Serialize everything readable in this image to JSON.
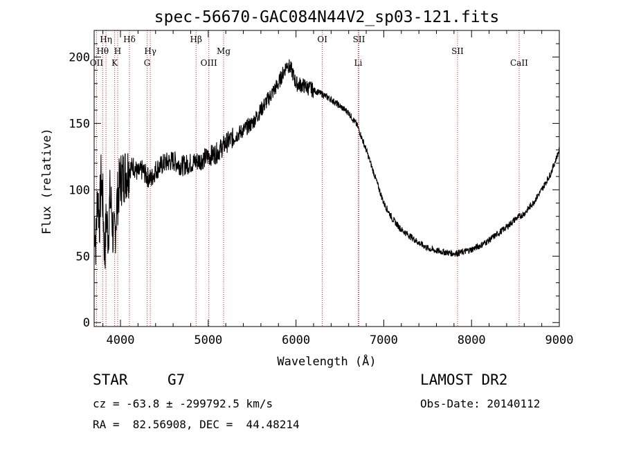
{
  "chart_data": {
    "type": "line",
    "title": "spec-56670-GAC084N44V2_sp03-121.fits",
    "xlabel": "Wavelength (Å)",
    "ylabel": "Flux (relative)",
    "xlim": [
      3700,
      9000
    ],
    "ylim": [
      -3,
      220
    ],
    "x_ticks": [
      4000,
      5000,
      6000,
      7000,
      8000,
      9000
    ],
    "y_ticks": [
      0,
      50,
      100,
      150,
      200
    ],
    "grid": false,
    "line_color": "#000000",
    "marker_color": "#cc2222",
    "line_markers": [
      {
        "label": "Hη",
        "wavelength": 3835,
        "row": 0
      },
      {
        "label": "Hθ",
        "wavelength": 3797,
        "row": 1
      },
      {
        "label": "OII",
        "wavelength": 3727,
        "row": 2
      },
      {
        "label": "H",
        "wavelength": 3968,
        "row": 1
      },
      {
        "label": "K",
        "wavelength": 3934,
        "row": 2
      },
      {
        "label": "Hδ",
        "wavelength": 4102,
        "row": 0
      },
      {
        "label": "Hγ",
        "wavelength": 4340,
        "row": 1
      },
      {
        "label": "G",
        "wavelength": 4304,
        "row": 2
      },
      {
        "label": "Hβ",
        "wavelength": 4861,
        "row": 0
      },
      {
        "label": "OIII",
        "wavelength": 5007,
        "row": 2
      },
      {
        "label": "Mg",
        "wavelength": 5175,
        "row": 1
      },
      {
        "label": "OI",
        "wavelength": 6300,
        "row": 0
      },
      {
        "label": "SII",
        "wavelength": 6717,
        "row": 0
      },
      {
        "label": "Li",
        "wavelength": 6708,
        "row": 2
      },
      {
        "label": "SII",
        "wavelength": 7840,
        "row": 1
      },
      {
        "label": "CaII",
        "wavelength": 8542,
        "row": 2
      }
    ],
    "series": [
      {
        "x": [
          3700,
          3720,
          3740,
          3760,
          3780,
          3800,
          3820,
          3840,
          3860,
          3880,
          3900,
          3920,
          3940,
          3960,
          3980,
          4000,
          4050,
          4100,
          4150,
          4200,
          4250,
          4300,
          4350,
          4400,
          4500,
          4600,
          4700,
          4800,
          4900,
          5000,
          5100,
          5200,
          5300,
          5400,
          5500,
          5600,
          5700,
          5800,
          5900,
          5950,
          6000,
          6100,
          6200,
          6300,
          6400,
          6500,
          6600,
          6700,
          6800,
          6900,
          7000,
          7100,
          7200,
          7300,
          7400,
          7500,
          7600,
          7700,
          7800,
          7900,
          8000,
          8100,
          8200,
          8300,
          8400,
          8500,
          8600,
          8700,
          8800,
          8900,
          9000
        ],
        "y": [
          80,
          60,
          100,
          75,
          110,
          90,
          50,
          80,
          65,
          95,
          85,
          60,
          70,
          90,
          100,
          108,
          112,
          116,
          118,
          112,
          115,
          110,
          108,
          115,
          120,
          122,
          118,
          120,
          122,
          125,
          128,
          135,
          140,
          145,
          150,
          160,
          170,
          180,
          195,
          190,
          180,
          178,
          175,
          172,
          168,
          163,
          158,
          148,
          130,
          110,
          90,
          78,
          70,
          65,
          60,
          56,
          54,
          53,
          52,
          53,
          55,
          58,
          62,
          67,
          72,
          78,
          82,
          90,
          100,
          112,
          130
        ]
      }
    ]
  },
  "info": {
    "object_class": "STAR",
    "subclass": "G7",
    "cz": "cz = -63.8 ± -299792.5 km/s",
    "coords": "RA =  82.56908, DEC =  44.48214",
    "survey": "LAMOST DR2",
    "obs_date": "Obs-Date: 20140112"
  }
}
